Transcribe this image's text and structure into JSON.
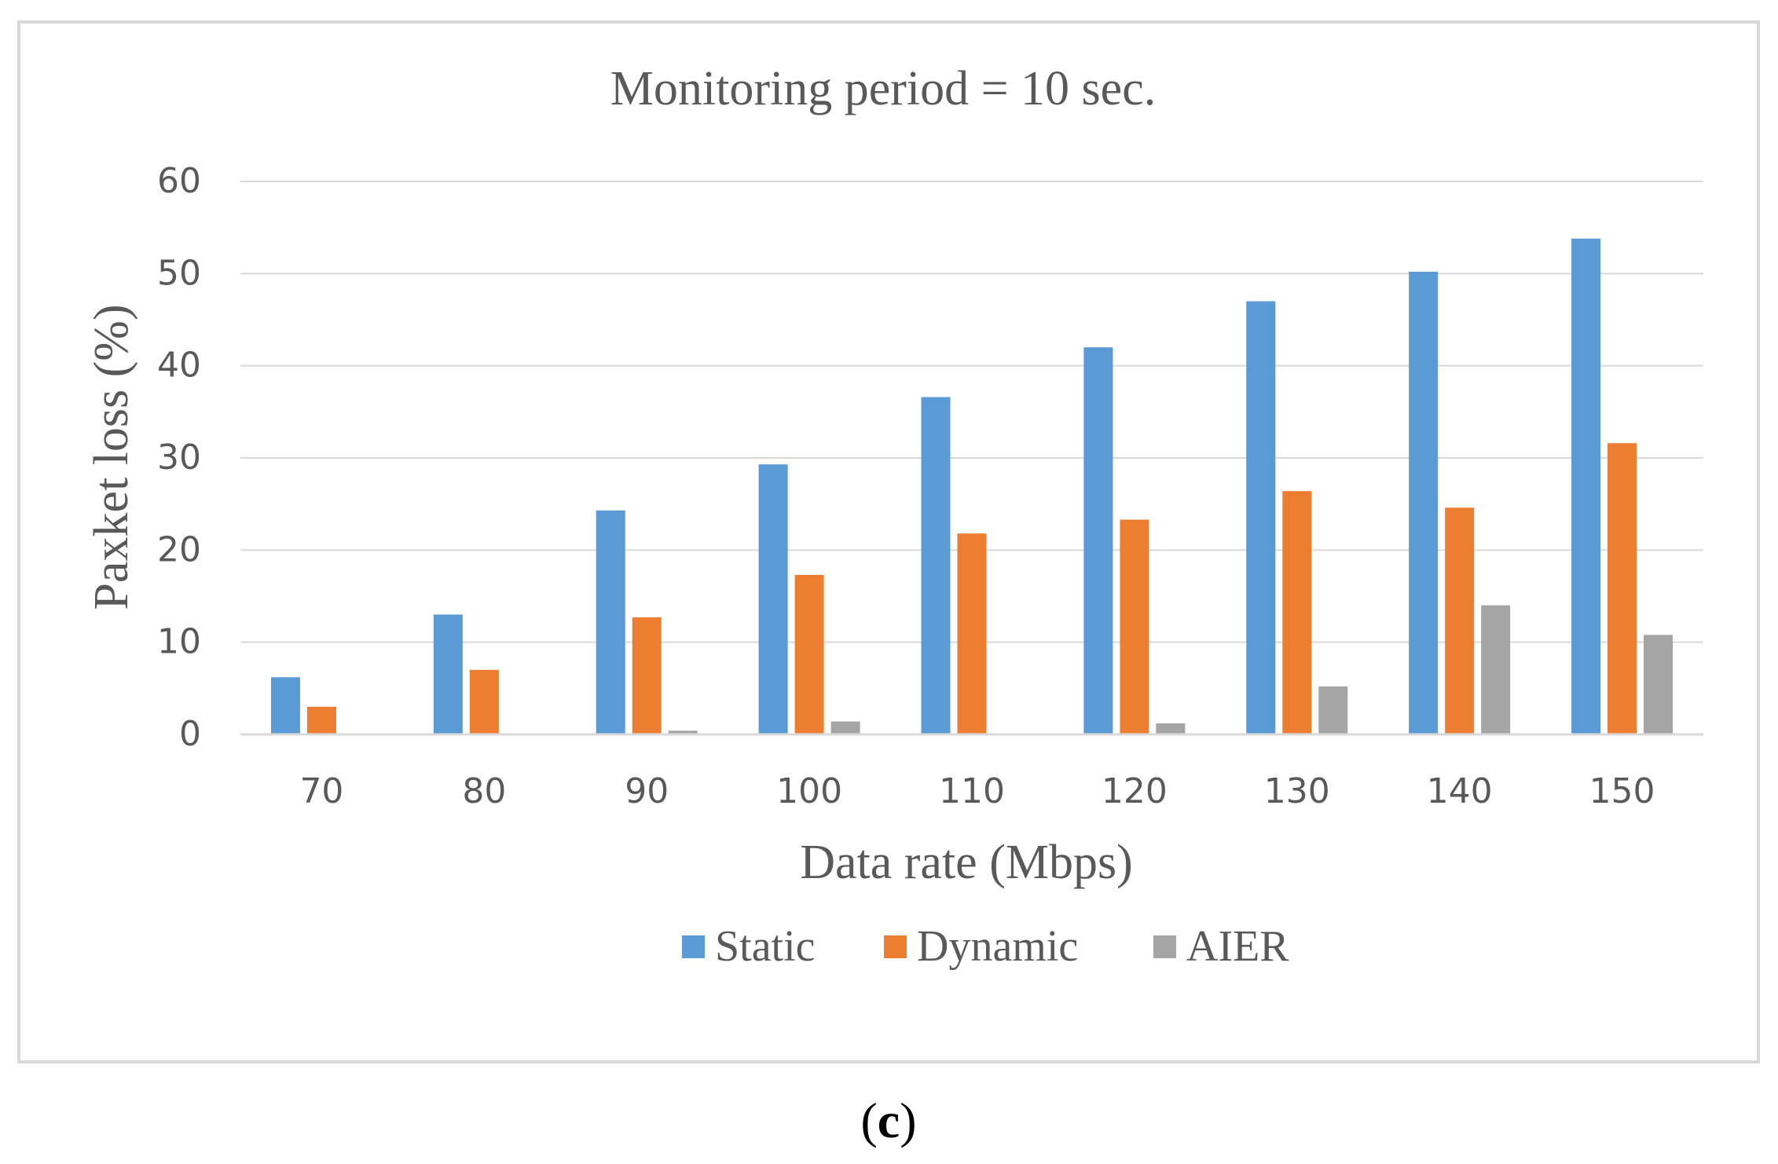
{
  "caption": {
    "open": "(",
    "letter": "c",
    "close": ")"
  },
  "chart_data": {
    "type": "bar",
    "title": "Monitoring period = 10 sec.",
    "xlabel": "Data rate (Mbps)",
    "ylabel": "Paxket loss (%)",
    "categories": [
      "70",
      "80",
      "90",
      "100",
      "110",
      "120",
      "130",
      "140",
      "150"
    ],
    "ylim": [
      0,
      60
    ],
    "yticks": [
      0,
      10,
      20,
      30,
      40,
      50,
      60
    ],
    "grid": true,
    "legend_position": "bottom",
    "series": [
      {
        "name": "Static",
        "color": "#5B9BD5",
        "values": [
          6.2,
          13.0,
          24.3,
          29.3,
          36.6,
          42.0,
          47.0,
          50.2,
          53.8
        ]
      },
      {
        "name": "Dynamic",
        "color": "#ED7D31",
        "values": [
          3.0,
          7.0,
          12.7,
          17.3,
          21.8,
          23.3,
          26.4,
          24.6,
          31.6
        ]
      },
      {
        "name": "AIER",
        "color": "#A5A5A5",
        "values": [
          0,
          0,
          0.4,
          1.4,
          0,
          1.2,
          5.2,
          14.0,
          10.8
        ]
      }
    ]
  }
}
